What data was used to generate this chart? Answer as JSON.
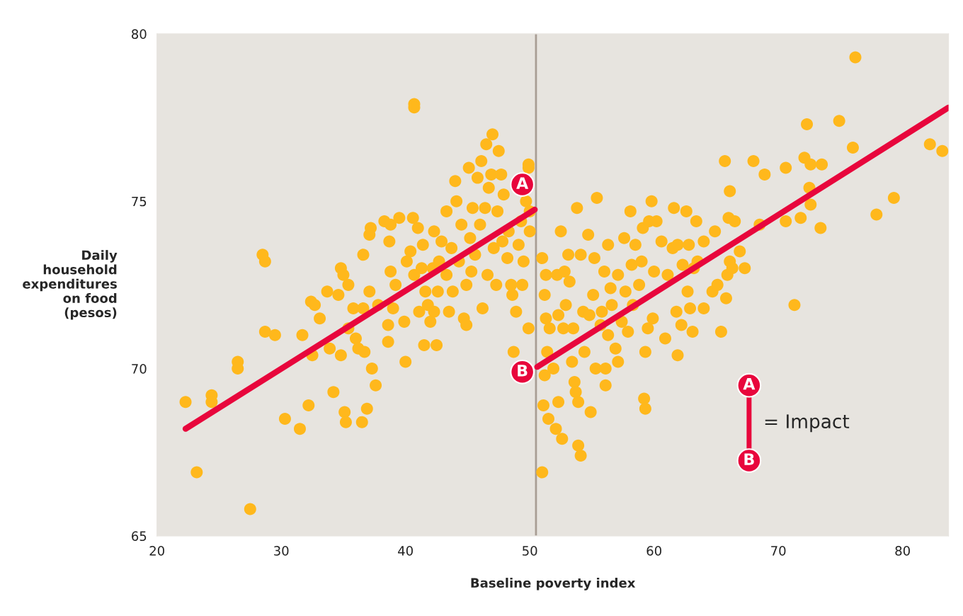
{
  "chart_data": {
    "type": "scatter",
    "xlabel": "Baseline poverty index",
    "ylabel": "Daily\nhousehold\nexpenditures\non food\n(pesos)",
    "xlim": [
      20,
      83.7
    ],
    "ylim": [
      65,
      80
    ],
    "xticks": [
      20,
      30,
      40,
      50,
      60,
      70,
      80
    ],
    "yticks": [
      65,
      70,
      75,
      80
    ],
    "grid": false,
    "legend": false,
    "series": [
      {
        "color": "#ffb81c",
        "marker": "circle",
        "x": [
          22.3,
          23.2,
          24.4,
          24.4,
          26.5,
          26.5,
          27.5,
          28.5,
          28.7,
          28.7,
          29.5,
          30.3,
          31.5,
          31.7,
          32.2,
          32.4,
          32.7,
          32.5,
          33.1,
          33.7,
          33.9,
          34.2,
          34.8,
          35.0,
          34.6,
          34.8,
          35.1,
          35.2,
          35.4,
          35.4,
          35.8,
          36.0,
          36.2,
          36.6,
          36.6,
          36.7,
          36.5,
          36.9,
          37.1,
          37.2,
          37.1,
          37.3,
          37.6,
          37.8,
          38.3,
          38.7,
          38.8,
          38.8,
          38.6,
          38.6,
          39.0,
          39.2,
          39.5,
          39.9,
          40.0,
          40.1,
          40.4,
          40.6,
          40.7,
          40.7,
          40.7,
          41.0,
          41.1,
          41.3,
          41.4,
          41.6,
          41.8,
          41.5,
          42.0,
          42.2,
          42.3,
          42.3,
          42.5,
          42.6,
          42.7,
          42.9,
          43.3,
          43.3,
          43.5,
          43.7,
          43.8,
          44.1,
          44.0,
          44.3,
          44.5,
          44.7,
          44.9,
          44.9,
          45.1,
          45.2,
          45.3,
          45.4,
          45.6,
          45.8,
          46.0,
          46.1,
          46.2,
          46.4,
          46.5,
          46.6,
          46.7,
          46.9,
          47.0,
          47.1,
          47.3,
          47.4,
          47.5,
          47.7,
          47.8,
          47.9,
          48.2,
          48.3,
          48.5,
          48.6,
          48.7,
          48.9,
          49.1,
          49.3,
          49.4,
          49.5,
          49.7,
          49.9,
          49.9,
          50.0,
          49.9,
          50.0,
          51.0,
          51.0,
          51.1,
          51.2,
          51.4,
          51.3,
          51.2,
          51.3,
          51.5,
          51.6,
          51.9,
          52.1,
          52.2,
          52.3,
          52.3,
          52.5,
          52.6,
          52.7,
          52.8,
          52.9,
          53.1,
          53.2,
          53.4,
          53.5,
          53.6,
          53.7,
          53.8,
          53.9,
          53.9,
          54.1,
          54.1,
          54.3,
          54.4,
          54.7,
          54.8,
          54.9,
          55.1,
          55.2,
          55.3,
          55.4,
          55.7,
          55.8,
          56.0,
          56.1,
          56.1,
          56.3,
          56.3,
          56.5,
          56.6,
          56.9,
          57.1,
          57.1,
          57.4,
          57.6,
          57.7,
          57.9,
          58.1,
          58.2,
          58.3,
          58.5,
          58.8,
          59.0,
          59.1,
          59.2,
          59.3,
          59.3,
          59.5,
          59.6,
          59.8,
          59.9,
          60.0,
          60.2,
          60.6,
          60.9,
          61.1,
          61.5,
          61.6,
          61.8,
          61.9,
          61.9,
          62.2,
          62.3,
          62.6,
          62.7,
          62.8,
          62.9,
          63.1,
          63.2,
          63.4,
          63.5,
          64.0,
          64.0,
          64.7,
          64.9,
          65.1,
          65.4,
          65.7,
          65.8,
          65.9,
          66.0,
          66.1,
          66.1,
          66.3,
          66.5,
          66.9,
          67.3,
          68.0,
          68.5,
          68.9,
          70.6,
          70.6,
          71.3,
          71.8,
          72.1,
          72.3,
          72.5,
          72.6,
          72.6,
          73.5,
          73.4,
          74.9,
          76.0,
          76.2,
          77.9,
          79.3,
          82.2,
          83.2
        ],
        "values": [
          69.0,
          66.9,
          69.2,
          69.0,
          70.2,
          70.0,
          65.8,
          73.4,
          73.2,
          71.1,
          71.0,
          68.5,
          68.2,
          71.0,
          68.9,
          72.0,
          71.9,
          70.4,
          71.5,
          72.3,
          70.6,
          69.3,
          73.0,
          72.8,
          72.2,
          70.4,
          68.7,
          68.4,
          72.5,
          71.2,
          71.8,
          70.9,
          70.6,
          73.4,
          71.8,
          70.5,
          68.4,
          68.8,
          74.0,
          74.2,
          72.3,
          70.0,
          69.5,
          71.9,
          74.4,
          73.8,
          74.3,
          72.9,
          71.3,
          70.8,
          71.8,
          72.5,
          74.5,
          71.4,
          70.2,
          73.2,
          73.5,
          74.5,
          77.9,
          77.8,
          72.8,
          74.2,
          71.7,
          73.0,
          73.7,
          72.3,
          71.9,
          70.7,
          71.4,
          73.0,
          74.1,
          71.7,
          70.7,
          72.3,
          73.2,
          73.8,
          74.7,
          72.8,
          71.7,
          73.6,
          72.3,
          75.0,
          75.6,
          73.2,
          74.3,
          71.5,
          72.5,
          71.3,
          76.0,
          73.9,
          72.9,
          74.8,
          73.4,
          75.7,
          74.3,
          76.2,
          71.8,
          74.8,
          76.7,
          72.8,
          75.4,
          75.8,
          77.0,
          73.6,
          72.5,
          74.7,
          76.5,
          75.8,
          73.8,
          75.2,
          73.3,
          74.1,
          72.5,
          72.2,
          70.5,
          71.7,
          73.7,
          74.4,
          72.5,
          73.2,
          75.0,
          76.0,
          76.1,
          74.7,
          71.2,
          74.1,
          66.9,
          73.3,
          68.9,
          69.8,
          70.5,
          71.5,
          72.2,
          72.8,
          68.5,
          71.2,
          70.0,
          68.2,
          72.8,
          71.6,
          69.0,
          74.1,
          67.9,
          71.2,
          72.9,
          71.9,
          73.4,
          72.6,
          70.2,
          71.2,
          69.6,
          69.3,
          74.8,
          67.7,
          69.0,
          73.4,
          67.4,
          71.7,
          70.5,
          74.0,
          71.6,
          68.7,
          72.2,
          73.3,
          70.0,
          75.1,
          71.3,
          71.7,
          72.9,
          69.5,
          70.0,
          73.7,
          71.0,
          72.4,
          71.9,
          70.6,
          72.8,
          70.2,
          71.4,
          73.9,
          72.3,
          71.1,
          74.7,
          73.1,
          71.9,
          73.7,
          72.5,
          73.2,
          74.2,
          69.1,
          70.5,
          68.8,
          71.2,
          74.4,
          75.0,
          71.5,
          72.9,
          74.4,
          73.8,
          70.9,
          72.8,
          73.6,
          74.8,
          71.7,
          70.4,
          73.7,
          71.3,
          73.1,
          74.7,
          72.3,
          73.7,
          71.8,
          71.1,
          73.0,
          74.4,
          73.2,
          73.8,
          71.8,
          72.3,
          74.1,
          72.5,
          71.1,
          76.2,
          72.1,
          72.8,
          74.5,
          75.3,
          73.2,
          73.0,
          74.4,
          73.5,
          73.0,
          76.2,
          74.3,
          75.8,
          76.0,
          74.4,
          71.9,
          74.5,
          76.3,
          77.3,
          75.4,
          74.9,
          76.1,
          76.1,
          74.2,
          77.4,
          76.6,
          79.3,
          74.6,
          75.1,
          76.7,
          76.5
        ]
      },
      {
        "type": "line",
        "color": "#e8063c",
        "marker": "none",
        "line_style": "solid",
        "x": [
          22.3,
          50.4
        ],
        "values": [
          68.2,
          74.75
        ]
      },
      {
        "type": "line",
        "color": "#e8063c",
        "marker": "none",
        "line_style": "solid",
        "x": [
          50.6,
          83.7
        ],
        "values": [
          70.05,
          77.8
        ]
      }
    ],
    "ref_lines": [
      {
        "axis": "x",
        "value": 50.5,
        "color": "#a89d94",
        "line_style": "solid"
      }
    ],
    "annotations": [
      {
        "text": "A",
        "x": 49.4,
        "y": 75.5
      },
      {
        "text": "B",
        "x": 49.4,
        "y": 69.9
      },
      "A",
      "B",
      "= Impact"
    ]
  }
}
